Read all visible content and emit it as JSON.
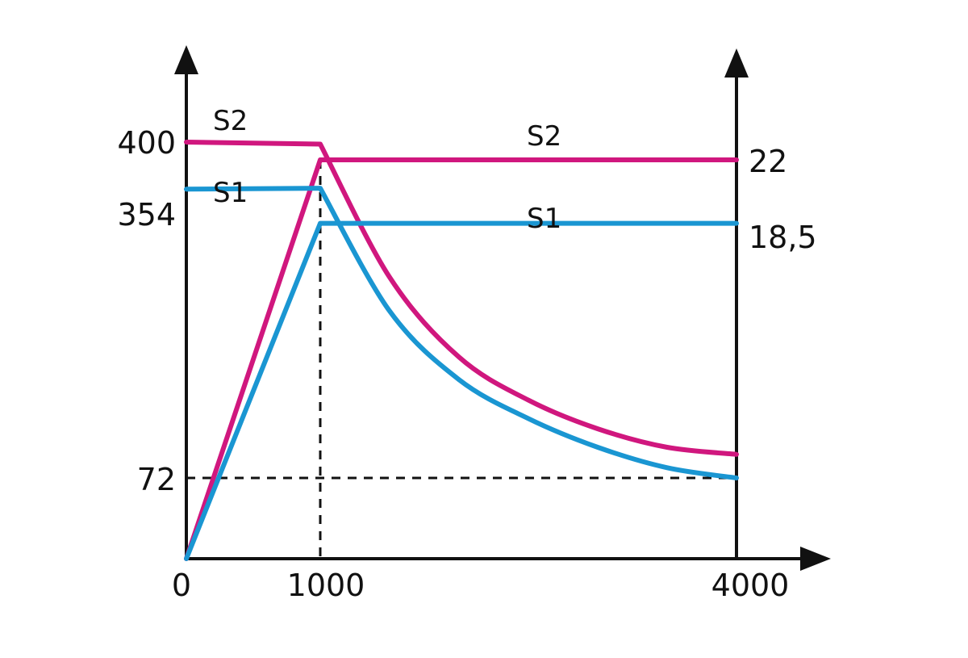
{
  "chart_data": {
    "type": "line",
    "title": "",
    "xlabel": "",
    "ylabel_left": "",
    "ylabel_right": "",
    "x_ticks": [
      "0",
      "1000",
      "4000"
    ],
    "left_y_ticks": [
      "400",
      "354",
      "72"
    ],
    "right_y_ticks": [
      "22",
      "18,5"
    ],
    "grid": false,
    "reference_lines": {
      "vertical_x": 1000,
      "horizontal_left_y": 72
    },
    "series": [
      {
        "name": "S2",
        "color": "#d0177e",
        "torque_label": "S2",
        "power_label": "S2",
        "torque": [
          {
            "x": 0,
            "y": 400
          },
          {
            "x": 1000,
            "y": 398
          },
          {
            "x": 1500,
            "y": 268
          },
          {
            "x": 2000,
            "y": 190
          },
          {
            "x": 2500,
            "y": 148
          },
          {
            "x": 3000,
            "y": 120
          },
          {
            "x": 3500,
            "y": 102
          },
          {
            "x": 4000,
            "y": 95
          }
        ],
        "power": [
          {
            "x": 0,
            "y": 0
          },
          {
            "x": 1000,
            "y": 22
          },
          {
            "x": 4000,
            "y": 22
          }
        ]
      },
      {
        "name": "S1",
        "color": "#1a96d2",
        "torque_label": "S1",
        "power_label": "S1",
        "torque": [
          {
            "x": 0,
            "y": 354
          },
          {
            "x": 1000,
            "y": 355
          },
          {
            "x": 1500,
            "y": 235
          },
          {
            "x": 2000,
            "y": 168
          },
          {
            "x": 2500,
            "y": 130
          },
          {
            "x": 3000,
            "y": 102
          },
          {
            "x": 3500,
            "y": 82
          },
          {
            "x": 4000,
            "y": 72
          }
        ],
        "power": [
          {
            "x": 0,
            "y": 0
          },
          {
            "x": 1000,
            "y": 18.5
          },
          {
            "x": 4000,
            "y": 18.5
          }
        ]
      }
    ]
  }
}
